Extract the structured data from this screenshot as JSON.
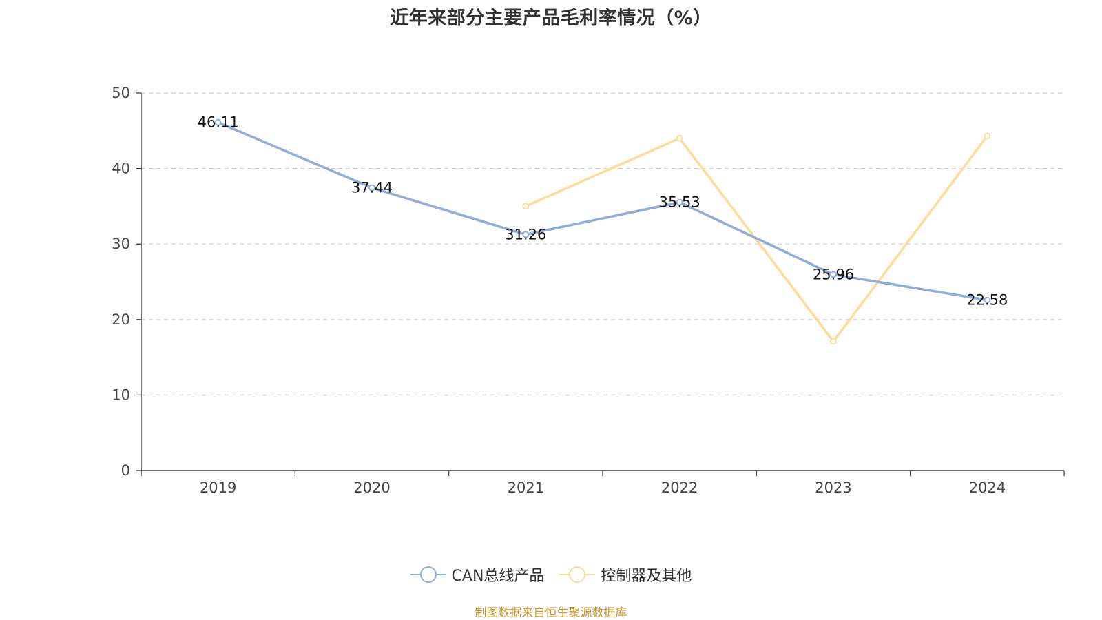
{
  "chart_data": {
    "type": "line",
    "title": "近年来部分主要产品毛利率情况（%）",
    "categories": [
      "2019",
      "2020",
      "2021",
      "2022",
      "2023",
      "2024"
    ],
    "ylim": [
      0,
      50
    ],
    "yticks": [
      0,
      10,
      20,
      30,
      40,
      50
    ],
    "grid": true,
    "legend_position": "bottom",
    "series": [
      {
        "name": "CAN总线产品",
        "color": "#8eadd9",
        "values": [
          46.11,
          37.44,
          31.26,
          35.53,
          25.96,
          22.58
        ],
        "labels": [
          "46.11",
          "37.44",
          "31.26",
          "35.53",
          "25.96",
          "22.58"
        ],
        "show_labels": true
      },
      {
        "name": "控制器及其他",
        "color": "#fddb99",
        "values": [
          null,
          null,
          35.0,
          44.0,
          17.1,
          44.3
        ],
        "show_labels": false
      }
    ]
  },
  "footer": {
    "source": "制图数据来自恒生聚源数据库"
  }
}
